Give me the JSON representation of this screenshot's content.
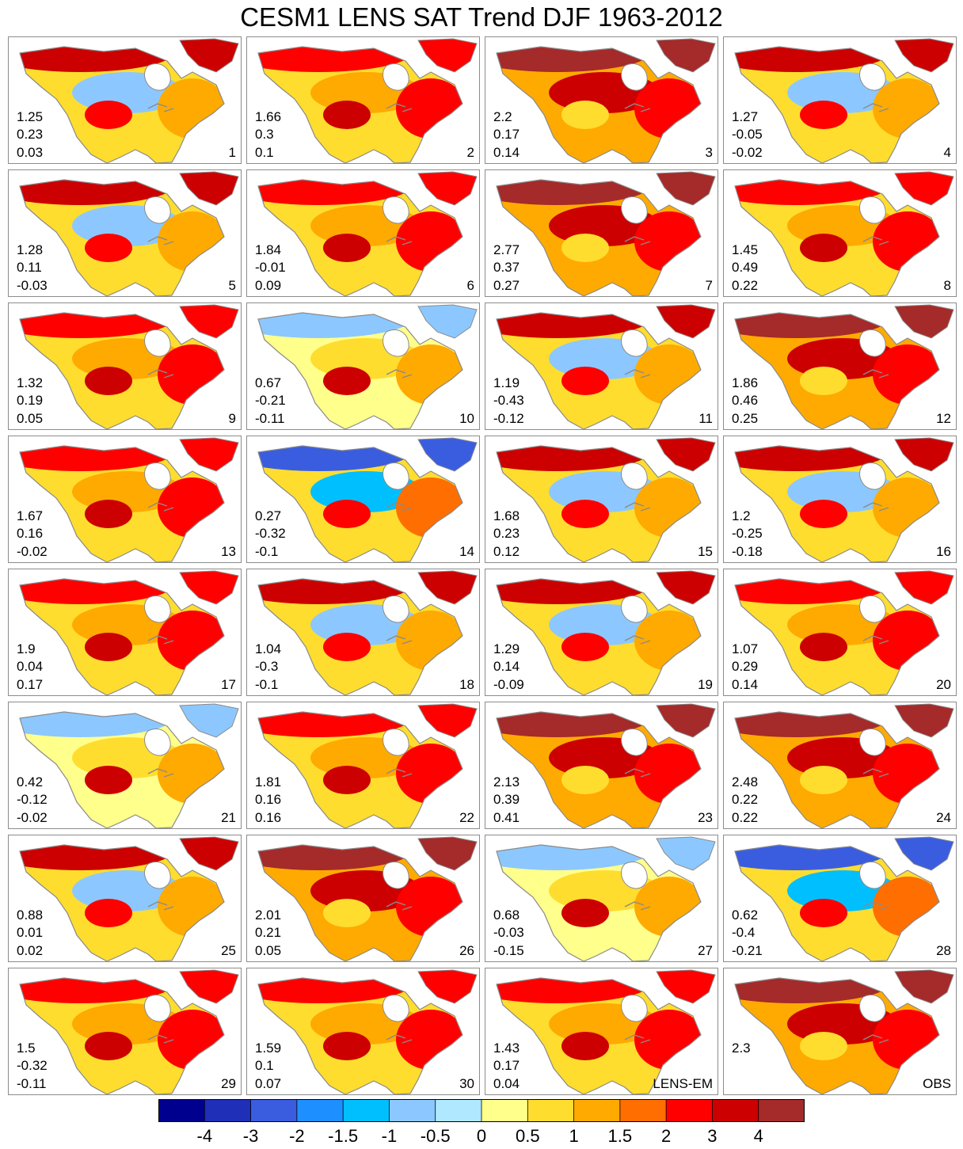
{
  "chart_data": {
    "type": "map-panels",
    "title": "CESM1 LENS SAT Trend DJF 1963-2012",
    "panels": [
      {
        "label": "1",
        "values": [
          1.25,
          0.23,
          0.03
        ],
        "kind": "mixed"
      },
      {
        "label": "2",
        "values": [
          1.66,
          0.3,
          0.1
        ],
        "kind": "warm"
      },
      {
        "label": "3",
        "values": [
          2.2,
          0.17,
          0.14
        ],
        "kind": "hot"
      },
      {
        "label": "4",
        "values": [
          1.27,
          -0.05,
          -0.02
        ],
        "kind": "mixed"
      },
      {
        "label": "5",
        "values": [
          1.28,
          0.11,
          -0.03
        ],
        "kind": "mixed"
      },
      {
        "label": "6",
        "values": [
          1.84,
          -0.01,
          0.09
        ],
        "kind": "warm"
      },
      {
        "label": "7",
        "values": [
          2.77,
          0.37,
          0.27
        ],
        "kind": "hot"
      },
      {
        "label": "8",
        "values": [
          1.45,
          0.49,
          0.22
        ],
        "kind": "warm"
      },
      {
        "label": "9",
        "values": [
          1.32,
          0.19,
          0.05
        ],
        "kind": "warm"
      },
      {
        "label": "10",
        "values": [
          0.67,
          -0.21,
          -0.11
        ],
        "kind": "cool"
      },
      {
        "label": "11",
        "values": [
          1.19,
          -0.43,
          -0.12
        ],
        "kind": "mixed"
      },
      {
        "label": "12",
        "values": [
          1.86,
          0.46,
          0.25
        ],
        "kind": "hot"
      },
      {
        "label": "13",
        "values": [
          1.67,
          0.16,
          -0.02
        ],
        "kind": "warm"
      },
      {
        "label": "14",
        "values": [
          0.27,
          -0.32,
          -0.1
        ],
        "kind": "cold"
      },
      {
        "label": "15",
        "values": [
          1.68,
          0.23,
          0.12
        ],
        "kind": "mixed"
      },
      {
        "label": "16",
        "values": [
          1.2,
          -0.25,
          -0.18
        ],
        "kind": "mixed"
      },
      {
        "label": "17",
        "values": [
          1.9,
          0.04,
          0.17
        ],
        "kind": "warm"
      },
      {
        "label": "18",
        "values": [
          1.04,
          -0.3,
          -0.1
        ],
        "kind": "mixed"
      },
      {
        "label": "19",
        "values": [
          1.29,
          0.14,
          -0.09
        ],
        "kind": "mixed"
      },
      {
        "label": "20",
        "values": [
          1.07,
          0.29,
          0.14
        ],
        "kind": "warm"
      },
      {
        "label": "21",
        "values": [
          0.42,
          -0.12,
          -0.02
        ],
        "kind": "cool"
      },
      {
        "label": "22",
        "values": [
          1.81,
          0.16,
          0.16
        ],
        "kind": "warm"
      },
      {
        "label": "23",
        "values": [
          2.13,
          0.39,
          0.41
        ],
        "kind": "hot"
      },
      {
        "label": "24",
        "values": [
          2.48,
          0.22,
          0.22
        ],
        "kind": "hot"
      },
      {
        "label": "25",
        "values": [
          0.88,
          0.01,
          0.02
        ],
        "kind": "mixed"
      },
      {
        "label": "26",
        "values": [
          2.01,
          0.21,
          0.05
        ],
        "kind": "hot"
      },
      {
        "label": "27",
        "values": [
          0.68,
          -0.03,
          -0.15
        ],
        "kind": "cool"
      },
      {
        "label": "28",
        "values": [
          0.62,
          -0.4,
          -0.21
        ],
        "kind": "cold"
      },
      {
        "label": "29",
        "values": [
          1.5,
          -0.32,
          -0.11
        ],
        "kind": "warm"
      },
      {
        "label": "30",
        "values": [
          1.59,
          0.1,
          0.07
        ],
        "kind": "warm"
      },
      {
        "label": "LENS-EM",
        "values": [
          1.43,
          0.17,
          0.04
        ],
        "kind": "warm"
      },
      {
        "label": "OBS",
        "values": [
          2.3
        ],
        "kind": "hot"
      }
    ],
    "colorbar": {
      "colors": [
        "#00008f",
        "#1f2fb8",
        "#3a5de0",
        "#1e8fff",
        "#00bfff",
        "#8cc8ff",
        "#afe8ff",
        "#ffff8c",
        "#ffdd2f",
        "#ffaa00",
        "#ff6e00",
        "#ff0000",
        "#cc0000",
        "#a52a2a"
      ],
      "tick_labels": [
        "-4",
        "-3",
        "-2",
        "-1.5",
        "-1",
        "-0.5",
        "0",
        "0.5",
        "1",
        "1.5",
        "2",
        "3",
        "4"
      ]
    }
  }
}
